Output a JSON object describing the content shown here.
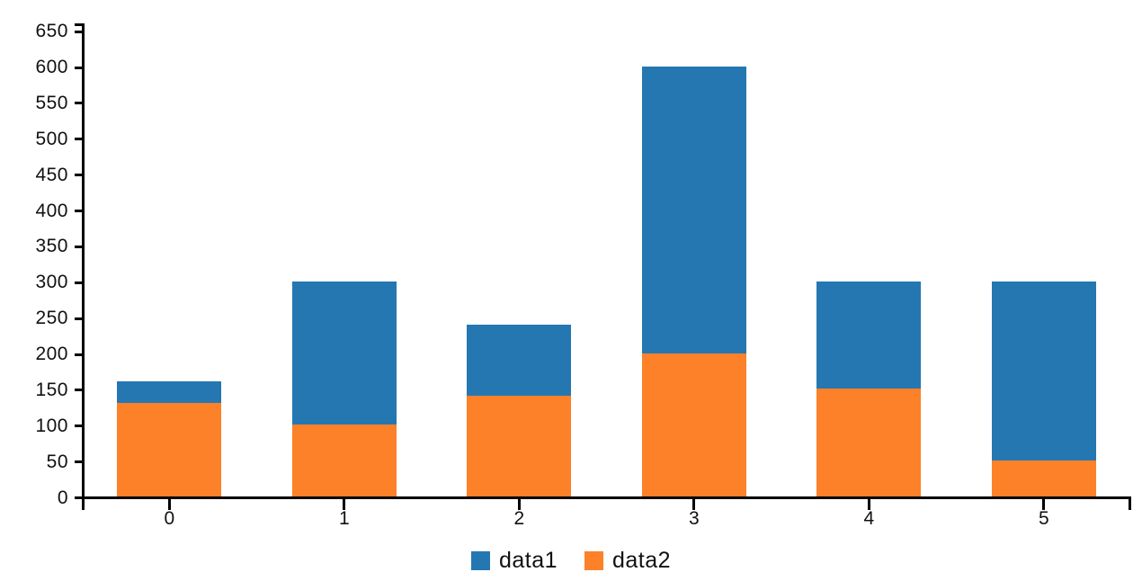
{
  "chart_data": {
    "type": "bar",
    "stacked": true,
    "title": "",
    "xlabel": "",
    "ylabel": "",
    "categories": [
      "0",
      "1",
      "2",
      "3",
      "4",
      "5"
    ],
    "series": [
      {
        "name": "data1",
        "color": "#2577b2",
        "values": [
          30,
          200,
          100,
          400,
          150,
          250
        ]
      },
      {
        "name": "data2",
        "color": "#fc8129",
        "values": [
          130,
          100,
          140,
          200,
          150,
          50
        ]
      }
    ],
    "stack_bottom_to_top": [
      "data2",
      "data1"
    ],
    "stacked_totals": [
      160,
      300,
      240,
      600,
      300,
      300
    ],
    "yticks": [
      0,
      50,
      100,
      150,
      200,
      250,
      300,
      350,
      400,
      450,
      500,
      550,
      600,
      650
    ],
    "ylim": [
      0,
      650
    ],
    "grid": false,
    "legend": {
      "position": "bottom",
      "entries": [
        "data1",
        "data2"
      ]
    },
    "colors": {
      "axis": "#000000",
      "text": "#111111",
      "background": "#ffffff"
    }
  }
}
